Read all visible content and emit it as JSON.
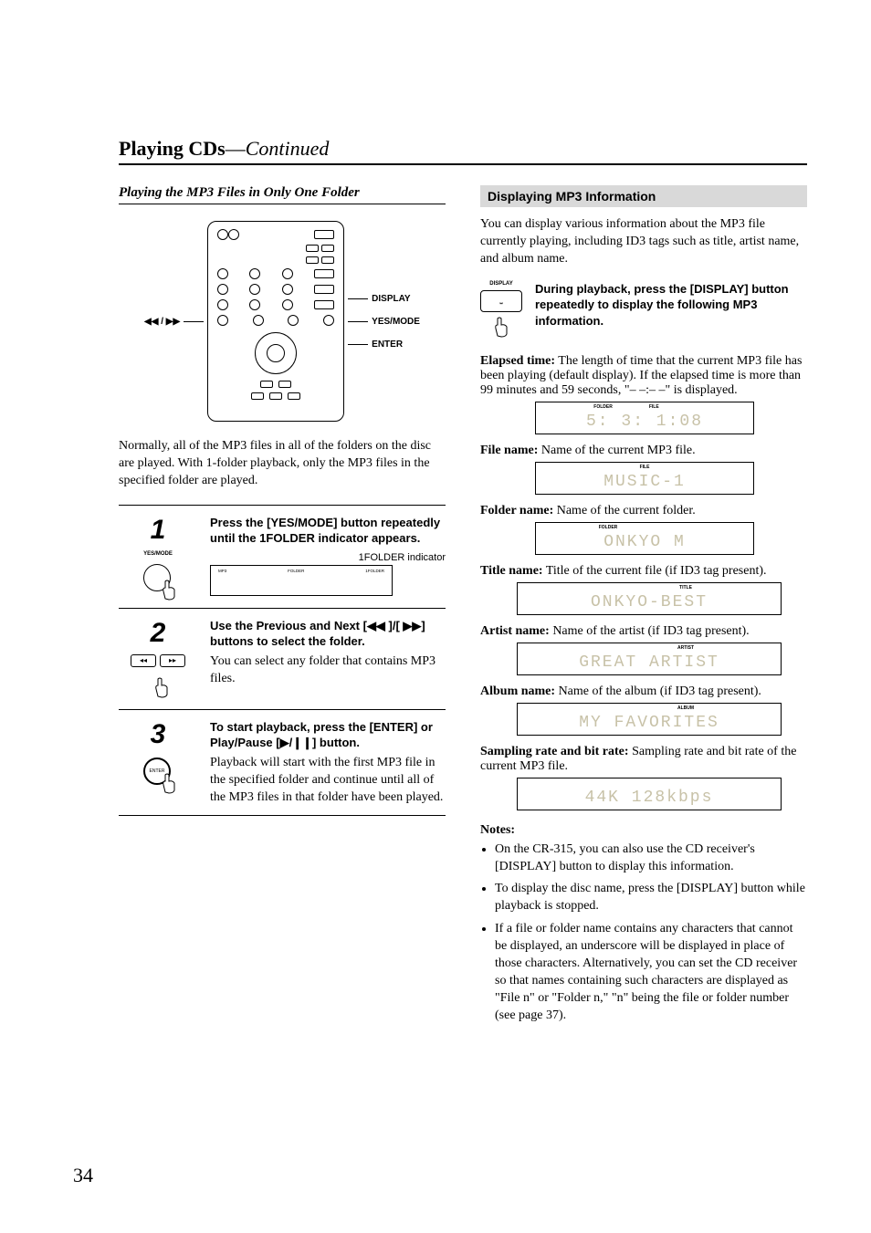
{
  "page": {
    "number": "34",
    "title_bold": "Playing CDs",
    "title_sep": "—",
    "title_em": "Continued"
  },
  "left": {
    "section_title": "Playing the MP3 Files in Only One Folder",
    "diagram": {
      "left_label": "◀◀ / ▶▶",
      "right_labels": [
        "DISPLAY",
        "YES/MODE",
        "ENTER"
      ]
    },
    "intro": "Normally, all of the MP3 files in all of the folders on the disc are played. With 1-folder playback, only the MP3 files in the specified folder are played.",
    "steps": [
      {
        "num": "1",
        "btn_caption": "YES/MODE",
        "head": "Press the [YES/MODE] button repeatedly until the 1FOLDER indicator appears.",
        "indicator_label": "1FOLDER indicator",
        "lcd_left": "MP3",
        "lcd_mid": "FOLDER",
        "lcd_right": "1FOLDER"
      },
      {
        "num": "2",
        "head": "Use the Previous and Next [◀◀ ]/[ ▶▶] buttons to select the folder.",
        "text": "You can select any folder that contains MP3 files."
      },
      {
        "num": "3",
        "btn_caption": "ENTER",
        "head": "To start playback, press the [ENTER] or Play/Pause [▶/❙❙] button.",
        "text": "Playback will start with the first MP3 file in the specified folder and continue until all of the MP3 files in that folder have been played."
      }
    ]
  },
  "right": {
    "grey_title": "Displaying MP3 Information",
    "intro": "You can display various information about the MP3 file currently playing, including ID3 tags such as title, artist name, and album name.",
    "display_button": {
      "icon_label": "DISPLAY",
      "text": "During playback, press the [DISPLAY] button repeatedly to display the following MP3 information."
    },
    "items": [
      {
        "label_bold": "Elapsed time:",
        "label_rest": " The length of time that the current MP3 file has been playing (default display). If the elapsed time is more than 99 minutes and 59 seconds, \"– –:– –\" is displayed.",
        "lcd_top": [
          "FOLDER",
          "FILE",
          ""
        ],
        "lcd_text": "  5:    3:   1:08"
      },
      {
        "label_bold": "File name:",
        "label_rest": " Name of the current MP3 file.",
        "lcd_top": [
          "",
          "FILE",
          ""
        ],
        "lcd_text": "MUSIC-1"
      },
      {
        "label_bold": "Folder name:",
        "label_rest": " Name of the current folder.",
        "lcd_top": [
          "FOLDER",
          "",
          ""
        ],
        "lcd_text": "ONKYO          M"
      },
      {
        "label_bold": "Title name:",
        "label_rest": " Title of the current file (if ID3 tag present).",
        "lcd_top": [
          "",
          "",
          "TITLE"
        ],
        "lcd_text": "ONKYO-BEST"
      },
      {
        "label_bold": "Artist name:",
        "label_rest": " Name of the artist (if ID3 tag present).",
        "lcd_top": [
          "",
          "",
          "ARTIST"
        ],
        "lcd_text": "GREAT  ARTIST"
      },
      {
        "label_bold": "Album name:",
        "label_rest": " Name of the album (if ID3 tag present).",
        "lcd_top": [
          "",
          "",
          "ALBUM"
        ],
        "lcd_text": "MY  FAVORITES"
      },
      {
        "label_bold": "Sampling rate and bit rate:",
        "label_rest": " Sampling rate and bit rate of the current MP3 file.",
        "lcd_top": [
          "",
          "",
          ""
        ],
        "lcd_text": "44K  128kbps"
      }
    ],
    "notes_title": "Notes:",
    "notes": [
      "On the CR-315, you can also use the CD receiver's [DISPLAY] button to display this information.",
      "To display the disc name, press the [DISPLAY] button while playback is stopped.",
      "If a file or folder name contains any characters that cannot be displayed, an underscore will be displayed in place of those characters. Alternatively, you can set the CD receiver so that names containing such characters are displayed as \"File n\" or \"Folder n,\" \"n\" being the file or folder number (see page 37)."
    ]
  }
}
